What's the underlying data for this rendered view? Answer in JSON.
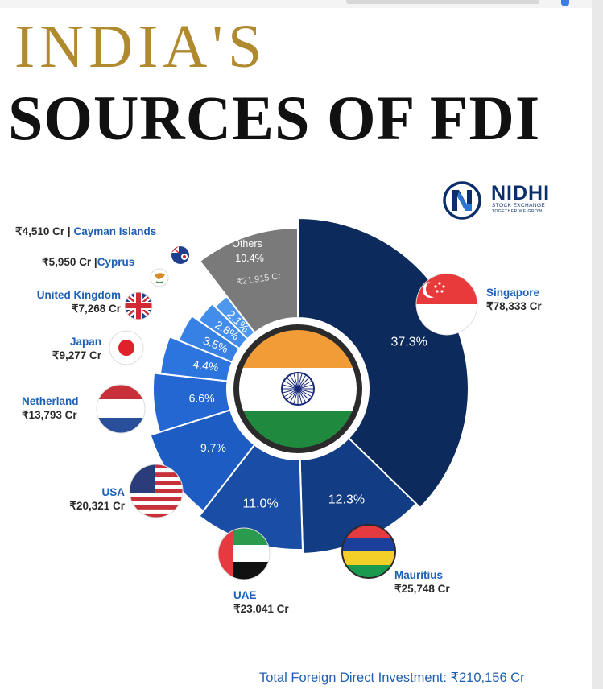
{
  "title_line1": "INDIA'S",
  "title_line2": "SOURCES OF FDI",
  "brand": {
    "name": "NIDHI",
    "subtitle": "STOCK EXCHANGE",
    "tagline": "TOGETHER WE GROW",
    "colors": {
      "primary": "#0b2f6b",
      "accent": "#2f7de0"
    }
  },
  "chart_data": {
    "type": "pie",
    "style": "donut",
    "center_icon": "india-flag",
    "unit": "Cr",
    "slices": [
      {
        "country": "Singapore",
        "value": 78333,
        "value_label": "₹78,333 Cr",
        "pct_label": "37.3%",
        "color": "#0c2a5c",
        "flag": "singapore-flag"
      },
      {
        "country": "Mauritius",
        "value": 25748,
        "value_label": "₹25,748 Cr",
        "pct_label": "12.3%",
        "color": "#123c83",
        "flag": "mauritius-flag"
      },
      {
        "country": "UAE",
        "value": 23041,
        "value_label": "₹23,041 Cr",
        "pct_label": "11.0%",
        "color": "#1a4ea6",
        "flag": "uae-flag"
      },
      {
        "country": "USA",
        "value": 20321,
        "value_label": "₹20,321 Cr",
        "pct_label": "9.7%",
        "color": "#1d5cc2",
        "flag": "usa-flag"
      },
      {
        "country": "Netherland",
        "value": 13793,
        "value_label": "₹13,793 Cr",
        "pct_label": "6.6%",
        "color": "#2467d2",
        "flag": "netherlands-flag"
      },
      {
        "country": "Japan",
        "value": 9277,
        "value_label": "₹9,277 Cr",
        "pct_label": "4.4%",
        "color": "#2c74de",
        "flag": "japan-flag"
      },
      {
        "country": "United Kingdom",
        "value": 7268,
        "value_label": "₹7,268 Cr",
        "pct_label": "3.5%",
        "color": "#3781e5",
        "flag": "uk-flag"
      },
      {
        "country": "Cyprus",
        "value": 5950,
        "value_label": "₹5,950 Cr",
        "pct_label": "2.8%",
        "color": "#428ceb",
        "flag": "cyprus-flag"
      },
      {
        "country": "Cayman Islands",
        "value": 4510,
        "value_label": "₹4,510 Cr",
        "pct_label": "2.1%",
        "color": "#4d97ef",
        "flag": "cayman-islands-flag"
      },
      {
        "country": "Others",
        "value": 21915,
        "value_label": "₹21,915 Cr",
        "pct_label": "10.4%",
        "color": "#7a7a7a",
        "flag": ""
      }
    ]
  },
  "labels": {
    "singapore": {
      "name": "Singapore",
      "value": "₹78,333 Cr"
    },
    "mauritius": {
      "name": "Mauritius",
      "value": "₹25,748 Cr"
    },
    "uae": {
      "name": "UAE",
      "value": "₹23,041 Cr"
    },
    "usa": {
      "name": "USA",
      "value": "₹20,321 Cr"
    },
    "netherland": {
      "name": "Netherland",
      "value": "₹13,793 Cr"
    },
    "japan": {
      "name": "Japan",
      "value": "₹9,277 Cr"
    },
    "uk": {
      "name": "United Kingdom",
      "value": "₹7,268 Cr"
    },
    "cyprus": {
      "name": "Cyprus",
      "value": "₹5,950 Cr",
      "sep": "|"
    },
    "cayman": {
      "name": "Cayman Islands",
      "value": "₹4,510 Cr",
      "sep": "|"
    },
    "others": {
      "name": "Others",
      "pct": "10.4%",
      "value": "₹21,915 Cr"
    }
  },
  "footer": "Total Foreign Direct Investment: ₹210,156 Cr"
}
